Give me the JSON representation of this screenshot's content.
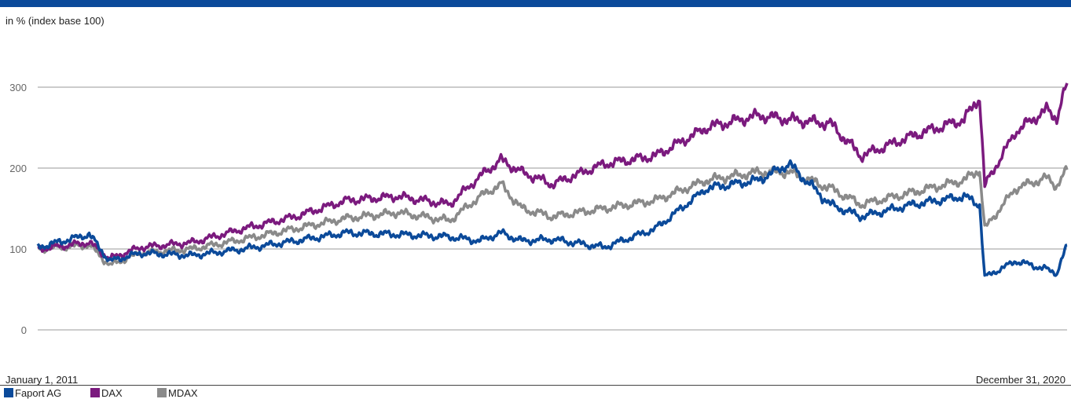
{
  "header": {
    "unit_label": "in % (index base 100)"
  },
  "chart_data": {
    "type": "line",
    "title": "",
    "xlabel": "",
    "ylabel": "in % (index base 100)",
    "x_start_label": "January 1, 2011",
    "x_end_label": "December 31, 2020",
    "x": [
      2011.0,
      2011.5,
      2011.7,
      2012.0,
      2012.5,
      2013.0,
      2013.5,
      2014.0,
      2014.5,
      2015.0,
      2015.3,
      2015.5,
      2015.7,
      2016.0,
      2016.5,
      2017.0,
      2017.5,
      2018.0,
      2018.3,
      2018.7,
      2019.0,
      2019.5,
      2020.0,
      2020.15,
      2020.2,
      2020.5,
      2020.8,
      2020.9,
      2021.0
    ],
    "ylim": [
      0,
      300
    ],
    "yticks": [
      0,
      100,
      200,
      300
    ],
    "grid": true,
    "legend_position": "bottom-left",
    "series": [
      {
        "name": "Faport AG",
        "color": "#0b4a9a",
        "values": [
          102,
          118,
          85,
          95,
          92,
          100,
          110,
          120,
          118,
          115,
          110,
          120,
          110,
          112,
          102,
          125,
          175,
          185,
          205,
          155,
          140,
          155,
          165,
          155,
          65,
          85,
          75,
          70,
          105
        ]
      },
      {
        "name": "DAX",
        "color": "#7b1a7e",
        "values": [
          100,
          108,
          88,
          102,
          108,
          125,
          140,
          160,
          165,
          155,
          190,
          210,
          195,
          180,
          205,
          215,
          250,
          265,
          260,
          255,
          215,
          240,
          260,
          288,
          178,
          245,
          272,
          262,
          305
        ]
      },
      {
        "name": "MDAX",
        "color": "#8a8a8a",
        "values": [
          100,
          105,
          80,
          95,
          100,
          112,
          125,
          138,
          145,
          135,
          165,
          180,
          150,
          140,
          150,
          160,
          185,
          195,
          195,
          175,
          155,
          170,
          185,
          198,
          125,
          175,
          188,
          178,
          198
        ]
      }
    ]
  }
}
